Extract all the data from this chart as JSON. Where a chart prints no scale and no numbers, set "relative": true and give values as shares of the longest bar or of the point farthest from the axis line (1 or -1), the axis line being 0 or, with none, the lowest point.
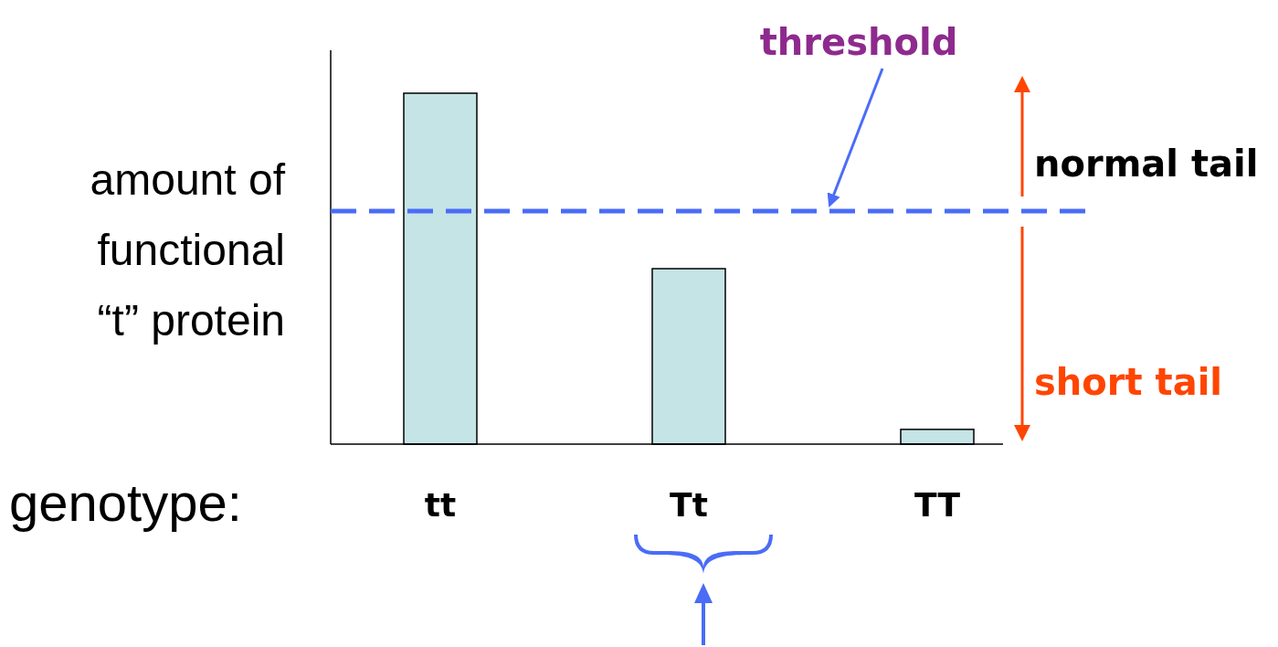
{
  "chart_data": {
    "type": "bar",
    "relative": true,
    "ylabel": "amount of\nfunctional\n“t” protein",
    "xlabel": "genotype:",
    "categories": [
      "tt",
      "Tt",
      "TT"
    ],
    "values": [
      1,
      0.5,
      0.042
    ],
    "color": "#c5e4e6",
    "ref_lines": [
      {
        "axis": "y",
        "value": 0.664,
        "color": "#4a6cf7",
        "line_style": "dashed"
      }
    ],
    "annotations": [
      "normal tail",
      "short tail",
      "threshold"
    ]
  }
}
